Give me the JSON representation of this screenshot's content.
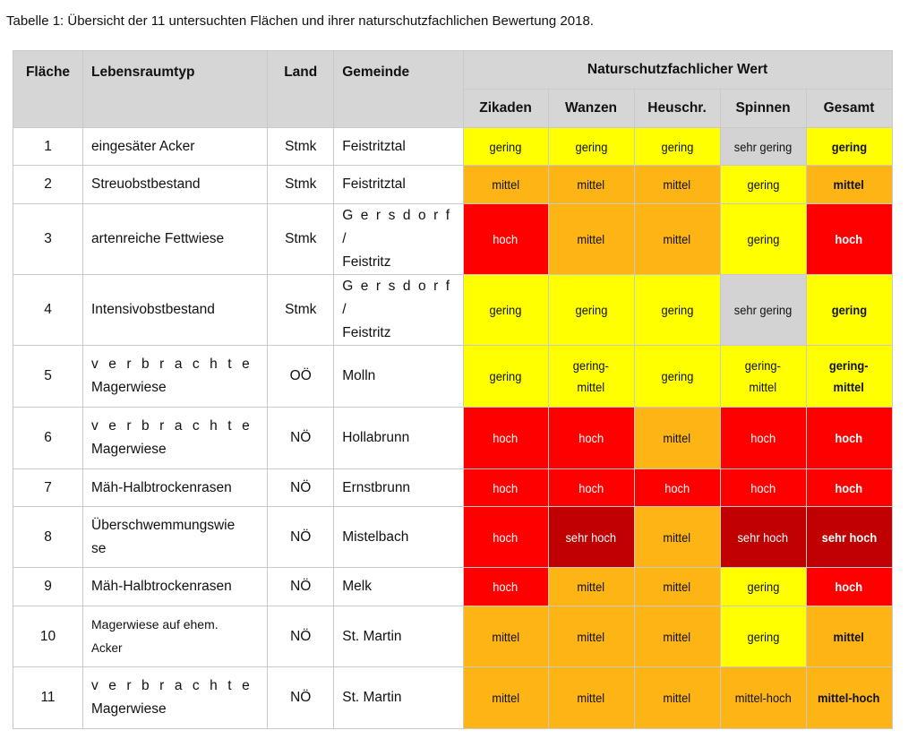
{
  "caption": "Tabelle 1: Übersicht der 11 untersuchten Flächen und ihrer naturschutzfachlichen Bewertung 2018.",
  "headers": {
    "flaeche": "Fläche",
    "lebensraumtyp": "Lebensraumtyp",
    "land": "Land",
    "gemeinde": "Gemeinde",
    "group": "Naturschutzfachlicher Wert",
    "zikaden": "Zikaden",
    "wanzen": "Wanzen",
    "heuschr": "Heuschr.",
    "spinnen": "Spinnen",
    "gesamt": "Gesamt"
  },
  "colors": {
    "gering": "#ffff00",
    "mittel": "#fdb515",
    "hoch": "#ff0000",
    "sehr_hoch": "#c00000",
    "sehr_gering": "#d3d3d3",
    "header_bg": "#d6d6d6"
  },
  "rows": [
    {
      "nr": "1",
      "lebensraum": [
        "eingesäter Acker"
      ],
      "land": "Stmk",
      "gemeinde": [
        "Feistritztal"
      ],
      "zikaden": [
        "gering"
      ],
      "wanzen": [
        "gering"
      ],
      "heuschr": [
        "gering"
      ],
      "spinnen": [
        "sehr gering"
      ],
      "gesamt": [
        "gering"
      ]
    },
    {
      "nr": "2",
      "lebensraum": [
        "Streuobstbestand"
      ],
      "land": "Stmk",
      "gemeinde": [
        "Feistritztal"
      ],
      "zikaden": [
        "mittel"
      ],
      "wanzen": [
        "mittel"
      ],
      "heuschr": [
        "mittel"
      ],
      "spinnen": [
        "gering"
      ],
      "gesamt": [
        "mittel"
      ]
    },
    {
      "nr": "3",
      "lebensraum": [
        "artenreiche Fettwiese"
      ],
      "land": "Stmk",
      "gemeinde": [
        "Gersdorf /",
        "Feistritz"
      ],
      "zikaden": [
        "hoch"
      ],
      "wanzen": [
        "mittel"
      ],
      "heuschr": [
        "mittel"
      ],
      "spinnen": [
        "gering"
      ],
      "gesamt": [
        "hoch"
      ]
    },
    {
      "nr": "4",
      "lebensraum": [
        "Intensivobstbestand"
      ],
      "land": "Stmk",
      "gemeinde": [
        "Gersdorf /",
        "Feistritz"
      ],
      "zikaden": [
        "gering"
      ],
      "wanzen": [
        "gering"
      ],
      "heuschr": [
        "gering"
      ],
      "spinnen": [
        "sehr gering"
      ],
      "gesamt": [
        "gering"
      ]
    },
    {
      "nr": "5",
      "lebensraum": [
        "verbrachte",
        "Magerwiese"
      ],
      "land": "OÖ",
      "gemeinde": [
        "Molln"
      ],
      "zikaden": [
        "gering"
      ],
      "wanzen": [
        "gering-",
        "mittel"
      ],
      "heuschr": [
        "gering"
      ],
      "spinnen": [
        "gering-",
        "mittel"
      ],
      "gesamt": [
        "gering-",
        "mittel"
      ]
    },
    {
      "nr": "6",
      "lebensraum": [
        "verbrachte",
        "Magerwiese"
      ],
      "land": "NÖ",
      "gemeinde": [
        "Hollabrunn"
      ],
      "zikaden": [
        "hoch"
      ],
      "wanzen": [
        "hoch"
      ],
      "heuschr": [
        "mittel"
      ],
      "spinnen": [
        "hoch"
      ],
      "gesamt": [
        "hoch"
      ]
    },
    {
      "nr": "7",
      "lebensraum": [
        "Mäh-Halbtrockenrasen"
      ],
      "land": "NÖ",
      "gemeinde": [
        "Ernstbrunn"
      ],
      "zikaden": [
        "hoch"
      ],
      "wanzen": [
        "hoch"
      ],
      "heuschr": [
        "hoch"
      ],
      "spinnen": [
        "hoch"
      ],
      "gesamt": [
        "hoch"
      ]
    },
    {
      "nr": "8",
      "lebensraum": [
        "Überschwemmungswie",
        "se"
      ],
      "land": "NÖ",
      "gemeinde": [
        "Mistelbach"
      ],
      "zikaden": [
        "hoch"
      ],
      "wanzen": [
        "sehr hoch"
      ],
      "heuschr": [
        "mittel"
      ],
      "spinnen": [
        "sehr hoch"
      ],
      "gesamt": [
        "sehr hoch"
      ]
    },
    {
      "nr": "9",
      "lebensraum": [
        "Mäh-Halbtrockenrasen"
      ],
      "land": "NÖ",
      "gemeinde": [
        "Melk"
      ],
      "zikaden": [
        "hoch"
      ],
      "wanzen": [
        "mittel"
      ],
      "heuschr": [
        "mittel"
      ],
      "spinnen": [
        "gering"
      ],
      "gesamt": [
        "hoch"
      ]
    },
    {
      "nr": "10",
      "lebensraum": [
        "Magerwiese auf ehem.",
        "Acker"
      ],
      "land": "NÖ",
      "gemeinde": [
        "St. Martin"
      ],
      "zikaden": [
        "mittel"
      ],
      "wanzen": [
        "mittel"
      ],
      "heuschr": [
        "mittel"
      ],
      "spinnen": [
        "gering"
      ],
      "gesamt": [
        "mittel"
      ]
    },
    {
      "nr": "11",
      "lebensraum": [
        "verbrachte",
        "Magerwiese"
      ],
      "land": "NÖ",
      "gemeinde": [
        "St. Martin"
      ],
      "zikaden": [
        "mittel"
      ],
      "wanzen": [
        "mittel"
      ],
      "heuschr": [
        "mittel"
      ],
      "spinnen": [
        "mittel-hoch"
      ],
      "gesamt": [
        "mittel-hoch"
      ]
    }
  ]
}
